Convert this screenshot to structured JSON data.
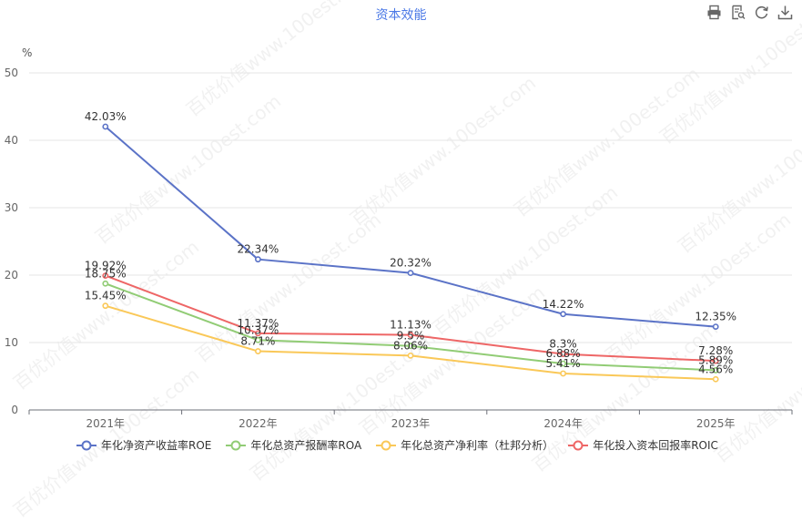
{
  "title": "资本效能",
  "toolbox": [
    "print-icon",
    "data-view-icon",
    "refresh-icon",
    "download-icon"
  ],
  "watermark": "百优价值www.100est.com",
  "chart_data": {
    "type": "line",
    "categories": [
      "2021年",
      "2022年",
      "2023年",
      "2024年",
      "2025年"
    ],
    "unit": "%",
    "ylim": [
      0,
      50
    ],
    "yticks": [
      0,
      10,
      20,
      30,
      40,
      50
    ],
    "grid": true,
    "legend_position": "bottom",
    "series": [
      {
        "name": "年化净资产收益率ROE",
        "color": "#5b73c7",
        "values": [
          42.03,
          22.34,
          20.32,
          14.22,
          12.35
        ],
        "labels": [
          "42.03%",
          "22.34%",
          "20.32%",
          "14.22%",
          "12.35%"
        ]
      },
      {
        "name": "年化总资产报酬率ROA",
        "color": "#91cc75",
        "values": [
          18.75,
          10.37,
          9.5,
          6.88,
          5.89
        ],
        "labels": [
          "18.75%",
          "10.37%",
          "9.5%",
          "6.88%",
          "5.89%"
        ]
      },
      {
        "name": "年化总资产净利率（杜邦分析）",
        "color": "#fac858",
        "values": [
          15.45,
          8.71,
          8.06,
          5.41,
          4.56
        ],
        "labels": [
          "15.45%",
          "8.71%",
          "8.06%",
          "5.41%",
          "4.56%"
        ]
      },
      {
        "name": "年化投入资本回报率ROIC",
        "color": "#ee6666",
        "values": [
          19.92,
          11.37,
          11.13,
          8.3,
          7.28
        ],
        "labels": [
          "19.92%",
          "11.37%",
          "11.13%",
          "8.3%",
          "7.28%"
        ]
      }
    ]
  }
}
